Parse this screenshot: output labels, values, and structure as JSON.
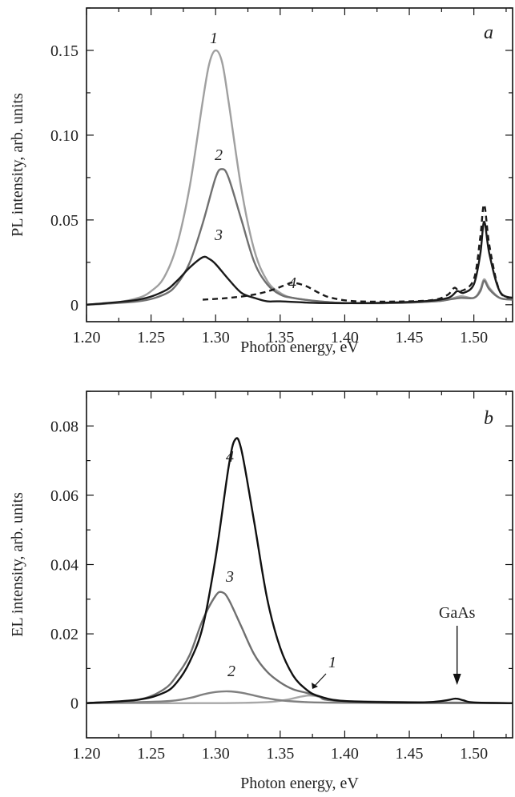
{
  "chart_data": [
    {
      "panel": "a",
      "type": "line",
      "xlabel": "Photon energy, eV",
      "ylabel": "PL intensity, arb. units",
      "xlim": [
        1.2,
        1.53
      ],
      "ylim": [
        -0.01,
        0.175
      ],
      "xticks": [
        "1.20",
        "1.25",
        "1.30",
        "1.35",
        "1.40",
        "1.45",
        "1.50"
      ],
      "yticks": [
        "0",
        "0.05",
        "0.10",
        "0.15"
      ],
      "series": [
        {
          "name": "1",
          "color": "#a0a0a0",
          "dash": false,
          "x": [
            1.2,
            1.22,
            1.24,
            1.25,
            1.26,
            1.27,
            1.28,
            1.29,
            1.295,
            1.3,
            1.305,
            1.31,
            1.32,
            1.33,
            1.34,
            1.35,
            1.36,
            1.38,
            1.4,
            1.44,
            1.47,
            1.48,
            1.49,
            1.5,
            1.505,
            1.508,
            1.512,
            1.52,
            1.53
          ],
          "y": [
            0.0,
            0.001,
            0.004,
            0.008,
            0.016,
            0.035,
            0.07,
            0.12,
            0.142,
            0.15,
            0.143,
            0.12,
            0.068,
            0.032,
            0.014,
            0.007,
            0.004,
            0.002,
            0.001,
            0.001,
            0.002,
            0.003,
            0.005,
            0.004,
            0.009,
            0.015,
            0.01,
            0.004,
            0.003
          ]
        },
        {
          "name": "2",
          "color": "#707070",
          "dash": false,
          "x": [
            1.2,
            1.24,
            1.26,
            1.27,
            1.28,
            1.29,
            1.3,
            1.305,
            1.31,
            1.32,
            1.33,
            1.34,
            1.35,
            1.36,
            1.38,
            1.4,
            1.44,
            1.47,
            1.48,
            1.49,
            1.5,
            1.505,
            1.508,
            1.512,
            1.52,
            1.53
          ],
          "y": [
            0.0,
            0.002,
            0.006,
            0.012,
            0.025,
            0.048,
            0.075,
            0.08,
            0.075,
            0.05,
            0.025,
            0.012,
            0.006,
            0.004,
            0.002,
            0.001,
            0.001,
            0.002,
            0.003,
            0.004,
            0.004,
            0.008,
            0.014,
            0.009,
            0.004,
            0.003
          ]
        },
        {
          "name": "3",
          "color": "#1a1a1a",
          "dash": false,
          "x": [
            1.2,
            1.24,
            1.26,
            1.27,
            1.28,
            1.29,
            1.295,
            1.3,
            1.31,
            1.32,
            1.33,
            1.34,
            1.35,
            1.38,
            1.42,
            1.46,
            1.48,
            1.487,
            1.492,
            1.5,
            1.505,
            1.508,
            1.512,
            1.52,
            1.53
          ],
          "y": [
            0.0,
            0.003,
            0.008,
            0.014,
            0.022,
            0.028,
            0.027,
            0.024,
            0.015,
            0.007,
            0.004,
            0.002,
            0.002,
            0.001,
            0.001,
            0.002,
            0.004,
            0.008,
            0.007,
            0.012,
            0.03,
            0.049,
            0.03,
            0.008,
            0.004
          ]
        },
        {
          "name": "4",
          "color": "#1a1a1a",
          "dash": true,
          "x": [
            1.29,
            1.31,
            1.33,
            1.345,
            1.355,
            1.36,
            1.37,
            1.38,
            1.39,
            1.41,
            1.45,
            1.47,
            1.48,
            1.485,
            1.49,
            1.5,
            1.505,
            1.508,
            1.512,
            1.52,
            1.53
          ],
          "y": [
            0.003,
            0.004,
            0.006,
            0.009,
            0.012,
            0.013,
            0.011,
            0.007,
            0.004,
            0.002,
            0.002,
            0.003,
            0.006,
            0.01,
            0.008,
            0.015,
            0.04,
            0.059,
            0.035,
            0.008,
            0.004
          ]
        }
      ]
    },
    {
      "panel": "b",
      "type": "line",
      "xlabel": "Photon energy, eV",
      "ylabel": "EL intensity, arb. units",
      "xlim": [
        1.2,
        1.53
      ],
      "ylim": [
        -0.01,
        0.09
      ],
      "xticks": [
        "1.20",
        "1.25",
        "1.30",
        "1.35",
        "1.40",
        "1.45",
        "1.50"
      ],
      "yticks": [
        "0",
        "0.02",
        "0.04",
        "0.06",
        "0.08"
      ],
      "annotation": "GaAs",
      "series": [
        {
          "name": "1",
          "color": "#a8a8a8",
          "dash": false,
          "x": [
            1.2,
            1.3,
            1.34,
            1.355,
            1.365,
            1.372,
            1.378,
            1.385,
            1.395,
            1.41,
            1.45,
            1.53
          ],
          "y": [
            0.0,
            0.0,
            0.0003,
            0.001,
            0.0018,
            0.0022,
            0.002,
            0.0012,
            0.0005,
            0.0002,
            0.0,
            0.0
          ]
        },
        {
          "name": "2",
          "color": "#808080",
          "dash": false,
          "x": [
            1.2,
            1.26,
            1.28,
            1.29,
            1.3,
            1.31,
            1.32,
            1.33,
            1.34,
            1.36,
            1.4,
            1.53
          ],
          "y": [
            0.0,
            0.0005,
            0.0015,
            0.0025,
            0.0032,
            0.0034,
            0.003,
            0.0022,
            0.0014,
            0.0005,
            0.0001,
            0.0
          ]
        },
        {
          "name": "3",
          "color": "#707070",
          "dash": false,
          "x": [
            1.2,
            1.24,
            1.26,
            1.27,
            1.28,
            1.29,
            1.3,
            1.305,
            1.31,
            1.32,
            1.33,
            1.34,
            1.35,
            1.36,
            1.37,
            1.38,
            1.4,
            1.53
          ],
          "y": [
            0.0,
            0.001,
            0.004,
            0.008,
            0.014,
            0.024,
            0.031,
            0.032,
            0.03,
            0.022,
            0.014,
            0.009,
            0.006,
            0.004,
            0.003,
            0.002,
            0.0006,
            0.0
          ]
        },
        {
          "name": "4",
          "color": "#111111",
          "dash": false,
          "x": [
            1.2,
            1.24,
            1.26,
            1.27,
            1.28,
            1.29,
            1.3,
            1.31,
            1.315,
            1.32,
            1.33,
            1.34,
            1.35,
            1.36,
            1.37,
            1.38,
            1.4,
            1.45,
            1.47,
            1.48,
            1.486,
            1.492,
            1.5,
            1.53
          ],
          "y": [
            0.0,
            0.001,
            0.003,
            0.006,
            0.012,
            0.022,
            0.042,
            0.068,
            0.076,
            0.073,
            0.052,
            0.03,
            0.016,
            0.008,
            0.004,
            0.002,
            0.0006,
            0.0002,
            0.0004,
            0.0009,
            0.0013,
            0.0008,
            0.0002,
            0.0
          ]
        }
      ]
    }
  ]
}
